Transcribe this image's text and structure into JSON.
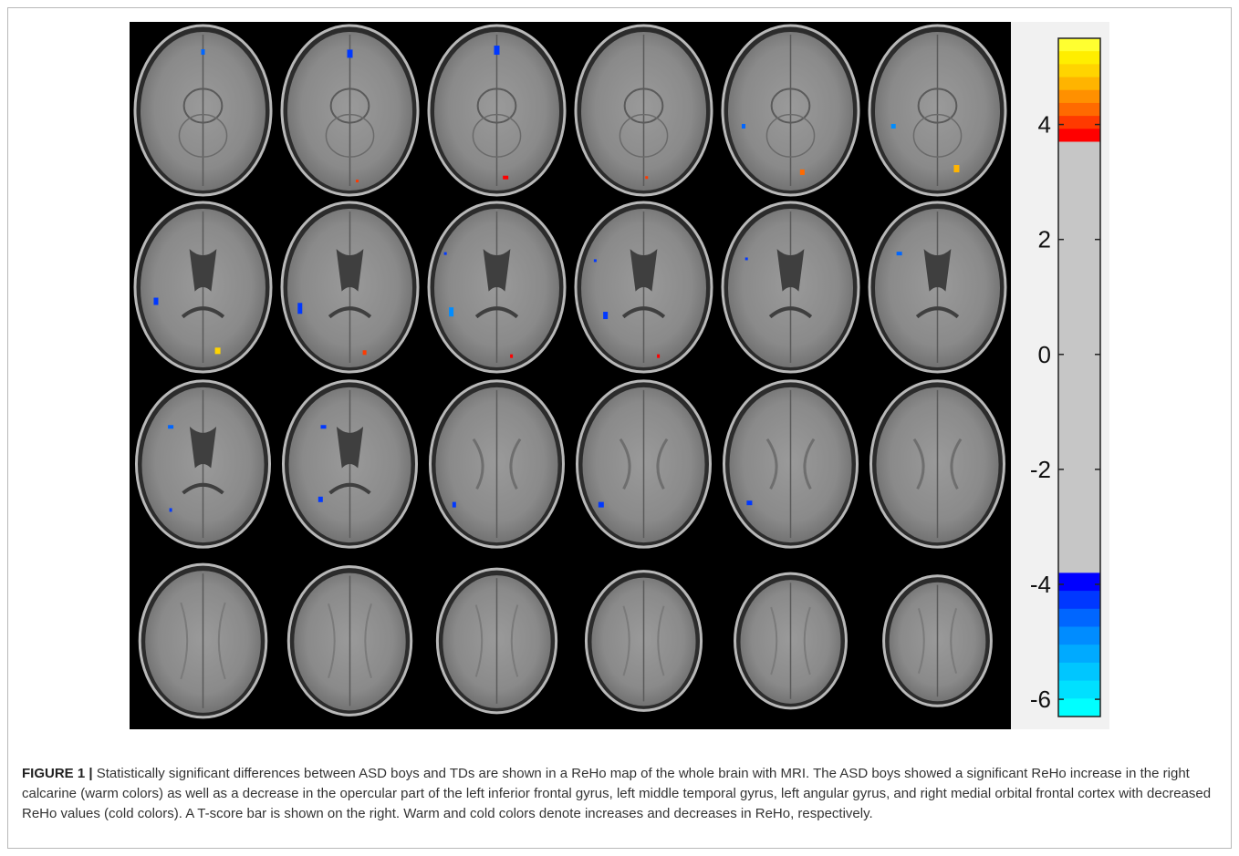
{
  "figure": {
    "label": "FIGURE 1 |",
    "caption": "Statistically significant differences between ASD boys and TDs are shown in a ReHo map of the whole brain with MRI. The ASD boys showed a significant ReHo increase in the right calcarine (warm colors) as well as a decrease in the opercular part of the left inferior frontal gyrus, left middle temporal gyrus, left angular gyrus, and right medial orbital frontal cortex with decreased ReHo values (cold colors). A T-score bar is shown on the right. Warm and cold colors denote increases and decreases in ReHo, respectively."
  },
  "colorbar": {
    "min": -6.3,
    "max": 5.5,
    "threshold_low": -3.8,
    "threshold_high": 3.7,
    "ticks": [
      {
        "value": 4,
        "label": "4"
      },
      {
        "value": 2,
        "label": "2"
      },
      {
        "value": 0,
        "label": "0"
      },
      {
        "value": -2,
        "label": "-2"
      },
      {
        "value": -4,
        "label": "-4"
      },
      {
        "value": -6,
        "label": "-6"
      }
    ],
    "colors": {
      "neutral": "#c6c6c6",
      "warm": [
        "#ff0000",
        "#ff3a00",
        "#ff6a00",
        "#ff9000",
        "#ffb400",
        "#ffd400",
        "#ffee00",
        "#ffff30"
      ],
      "cold": [
        "#0000ff",
        "#0038ff",
        "#0066ff",
        "#008cff",
        "#00aaff",
        "#00c6ff",
        "#00e0ff",
        "#00ffff"
      ]
    }
  },
  "slices": {
    "rows": 4,
    "cols": 6,
    "brain_color": "#8a8a8a",
    "background": "#000000"
  }
}
